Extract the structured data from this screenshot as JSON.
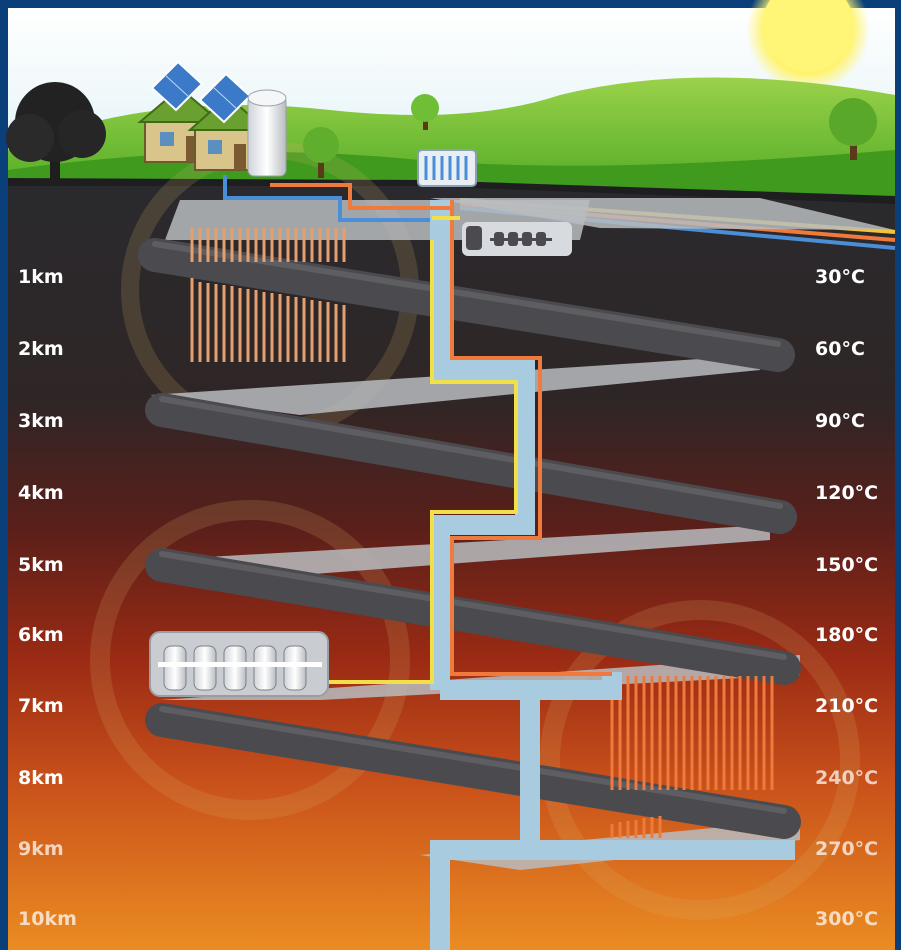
{
  "depth_labels": [
    "1km",
    "2km",
    "3km",
    "4km",
    "5km",
    "6km",
    "7km",
    "8km",
    "9km",
    "10km"
  ],
  "temperature_labels": [
    "30°C",
    "60°C",
    "90°C",
    "120°C",
    "150°C",
    "180°C",
    "210°C",
    "240°C",
    "270°C",
    "300°C"
  ],
  "colors": {
    "frame": "#0b3f7a",
    "sky": "#eaf6fb",
    "grass": "#3f9a1e",
    "rock_top": "#2a2a2e",
    "rock_bottom": "#e2811e",
    "hot_pipe": "#f07a3c",
    "cold_pipe": "#a9cbe0",
    "return_pipe": "#f2e04a",
    "tunnel": "#4b4b4f",
    "platform": "#b9bcc0"
  },
  "icons": [
    "sun-icon",
    "tree-icon",
    "house-icon",
    "solar-panel-icon",
    "storage-tank-icon",
    "cooling-unit-icon",
    "machinery-icon",
    "heat-exchanger-icon"
  ]
}
